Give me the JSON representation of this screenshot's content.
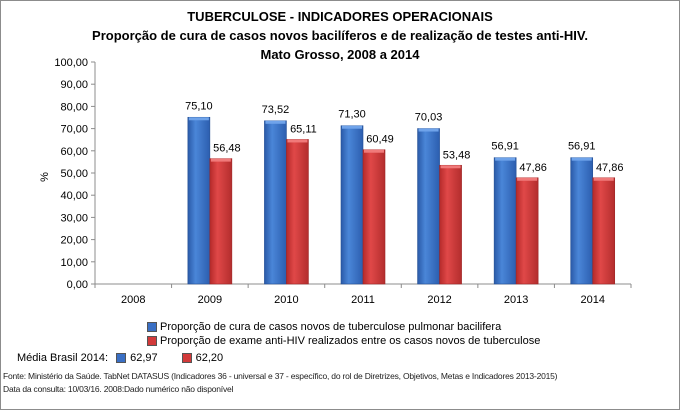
{
  "chart_data": {
    "type": "bar",
    "title": "TUBERCULOSE - INDICADORES OPERACIONAIS",
    "subtitle": "Proporção de cura de casos novos bacilíferos e de realização de testes anti-HIV.",
    "subtitle2": "Mato Grosso, 2008 a 2014",
    "xlabel": "",
    "ylabel": "%",
    "ylim": [
      0,
      100
    ],
    "yticks": [
      "0,00",
      "10,00",
      "20,00",
      "30,00",
      "40,00",
      "50,00",
      "60,00",
      "70,00",
      "80,00",
      "90,00",
      "100,00"
    ],
    "grid": false,
    "legend_position": "bottom",
    "categories": [
      "2008",
      "2009",
      "2010",
      "2011",
      "2012",
      "2013",
      "2014"
    ],
    "series": [
      {
        "name": "Proporção de cura de casos novos de tuberculose pulmonar bacilifera",
        "color": "#3a6fc4",
        "values": [
          null,
          75.1,
          73.52,
          71.3,
          70.03,
          56.91,
          56.91
        ],
        "labels": [
          "",
          "75,10",
          "73,52",
          "71,30",
          "70,03",
          "56,91",
          "56,91"
        ]
      },
      {
        "name": "Proporção de exame anti-HIV realizados entre os casos novos de tuberculose",
        "color": "#d23a3a",
        "values": [
          null,
          56.48,
          65.11,
          60.49,
          53.48,
          47.86,
          47.86
        ],
        "labels": [
          "",
          "56,48",
          "65,11",
          "60,49",
          "53,48",
          "47,86",
          "47,86"
        ]
      }
    ]
  },
  "media_brasil": {
    "label": "Média Brasil 2014:",
    "cura": "62,97",
    "hiv": "62,20"
  },
  "footer": {
    "source": "Fonte: Ministério da Saúde. TabNet DATASUS (Indicadores 36 - universal e 37 - específico, do rol de Diretrizes, Objetivos, Metas e Indicadores 2013-2015)",
    "date_note": "Data da consulta: 10/03/16. 2008:Dado numérico não disponível"
  }
}
